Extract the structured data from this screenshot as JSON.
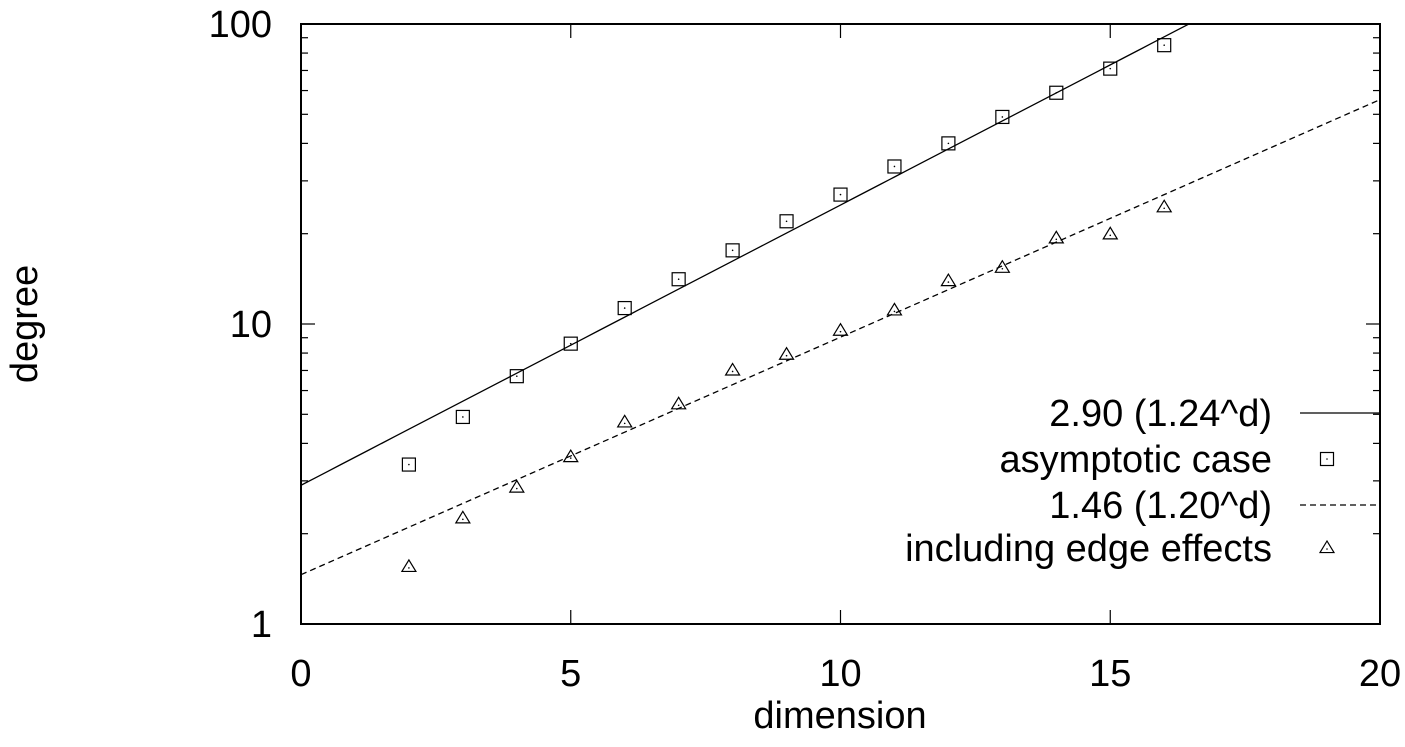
{
  "chart_data": {
    "type": "scatter",
    "xlabel": "dimension",
    "ylabel": "degree",
    "xlim": [
      0,
      20
    ],
    "ylim": [
      1,
      100
    ],
    "yscale": "log",
    "x_ticks": [
      0,
      5,
      10,
      15,
      20
    ],
    "y_ticks": [
      1,
      10,
      100
    ],
    "grid": false,
    "legend_position": "bottom-right",
    "series": [
      {
        "name": "2.90 (1.24^d)",
        "kind": "line",
        "dash": "solid",
        "coefficient": 2.9,
        "base": 1.24,
        "x_range": [
          0,
          20
        ]
      },
      {
        "name": "asymptotic case",
        "kind": "points",
        "marker": "square",
        "x": [
          2,
          3,
          4,
          5,
          6,
          7,
          8,
          9,
          10,
          11,
          12,
          13,
          14,
          15,
          16
        ],
        "y": [
          3.4,
          4.9,
          6.7,
          8.6,
          11.3,
          14.1,
          17.6,
          22.0,
          27.0,
          33.5,
          40.0,
          49.0,
          59.0,
          71.0,
          85.0
        ]
      },
      {
        "name": "1.46 (1.20^d)",
        "kind": "line",
        "dash": "dashed",
        "coefficient": 1.46,
        "base": 1.2,
        "x_range": [
          0,
          20
        ]
      },
      {
        "name": "including edge effects",
        "kind": "points",
        "marker": "triangle",
        "x": [
          2,
          3,
          4,
          5,
          6,
          7,
          8,
          9,
          10,
          11,
          12,
          13,
          14,
          15,
          16
        ],
        "y": [
          1.55,
          2.25,
          2.85,
          3.6,
          4.7,
          5.4,
          7.0,
          7.9,
          9.5,
          11.1,
          13.9,
          15.4,
          19.3,
          19.9,
          24.5
        ]
      }
    ]
  }
}
